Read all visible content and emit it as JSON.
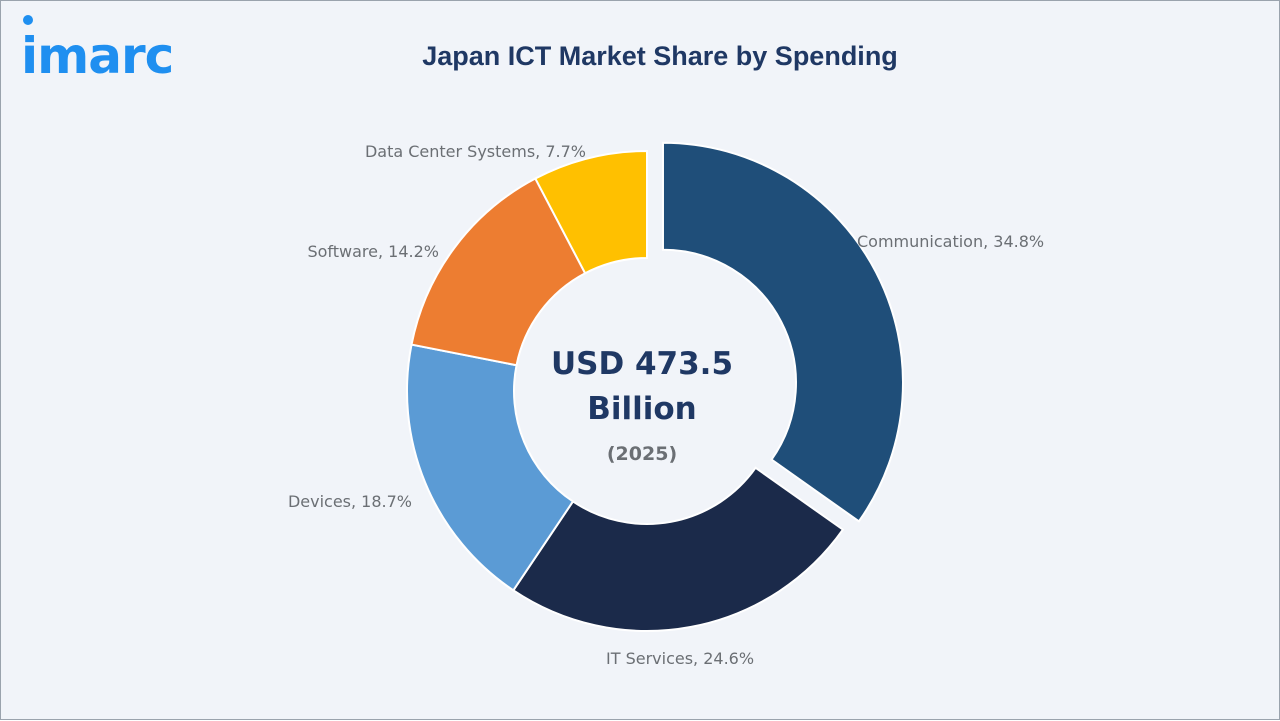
{
  "logo": {
    "text": "imarc",
    "color": "#1f8ff0"
  },
  "chart_data": {
    "type": "pie",
    "variant": "donut",
    "title": "Japan ICT Market Share by Spending",
    "unit": "%",
    "center": {
      "value_line1": "USD 473.5",
      "value_line2": "Billion",
      "year": "(2025)"
    },
    "slices": [
      {
        "label": "Communication, 34.8%",
        "category": "Communication",
        "value": 34.8,
        "color": "#1f4e79",
        "exploded": true
      },
      {
        "label": "IT Services, 24.6%",
        "category": "IT Services",
        "value": 24.6,
        "color": "#1b2a4a",
        "exploded": false
      },
      {
        "label": "Devices, 18.7%",
        "category": "Devices",
        "value": 18.7,
        "color": "#5b9bd5",
        "exploded": false
      },
      {
        "label": "Software, 14.2%",
        "category": "Software",
        "value": 14.2,
        "color": "#ed7d31",
        "exploded": false
      },
      {
        "label": "Data Center Systems, 7.7%",
        "category": "Data Center Systems",
        "value": 7.7,
        "color": "#ffc000",
        "exploded": false
      }
    ]
  }
}
